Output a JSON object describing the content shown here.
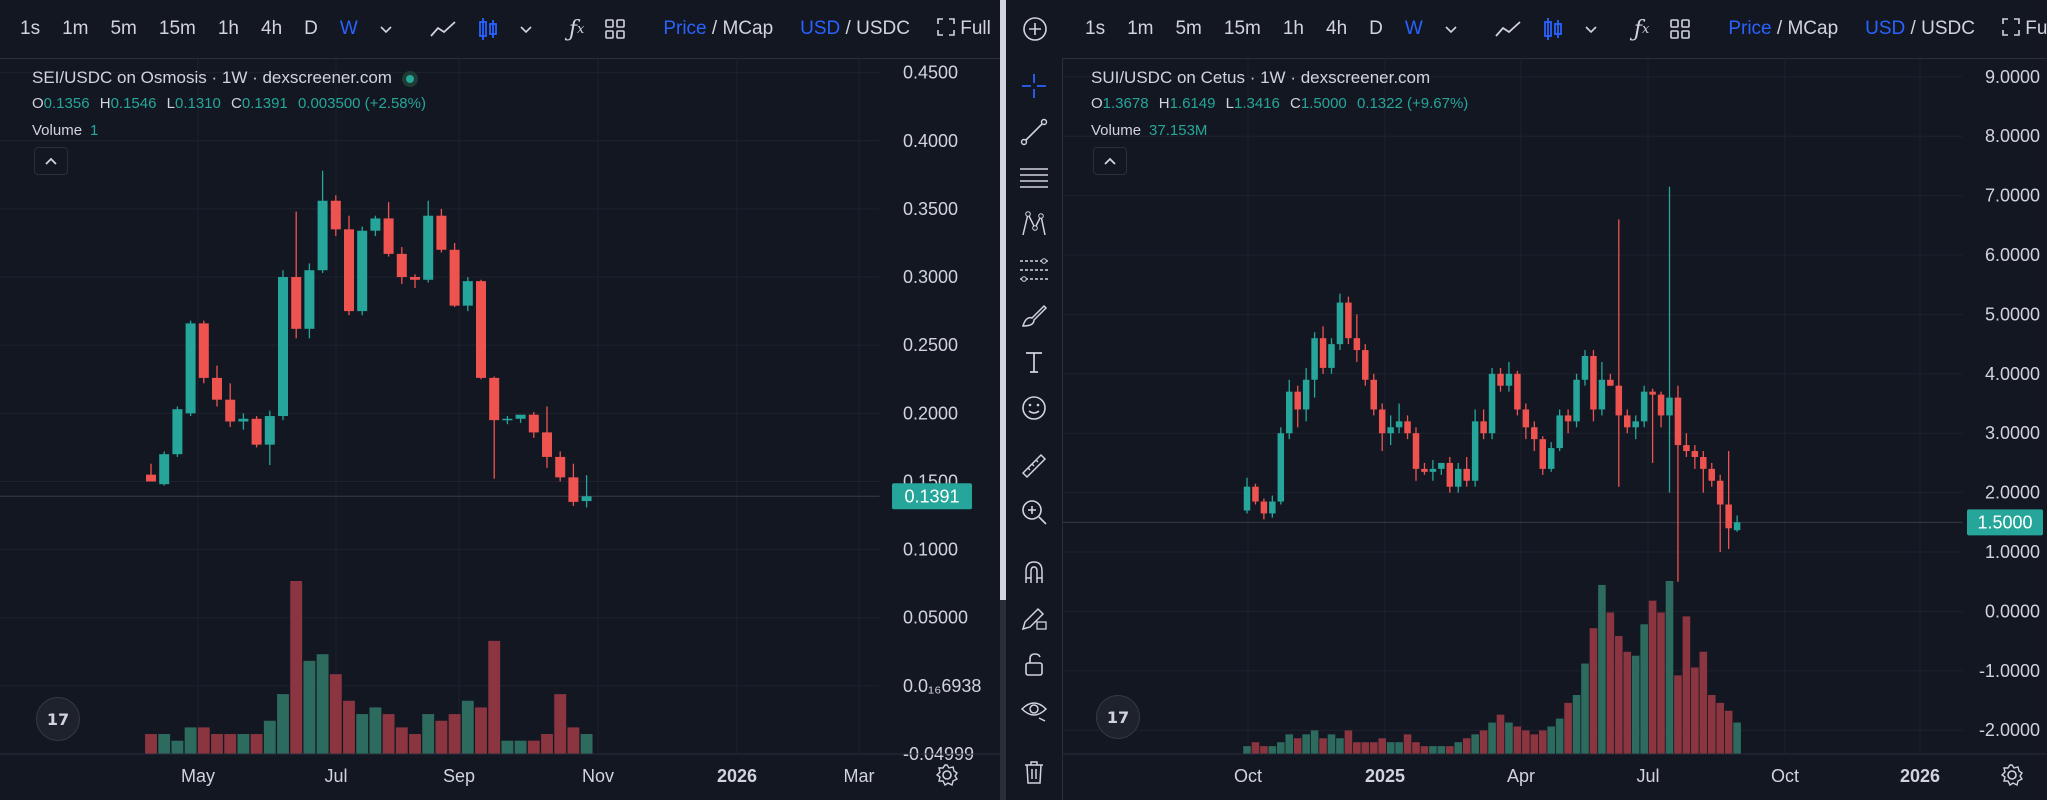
{
  "toolbar": {
    "intervals": [
      "1s",
      "1m",
      "5m",
      "15m",
      "1h",
      "4h",
      "D",
      "W"
    ],
    "active_interval": "W",
    "price_label": "Price",
    "mcap_label": "MCap",
    "usd_label": "USD",
    "usdc_label": "USDC",
    "full_label": "Full",
    "slash": "/"
  },
  "left": {
    "title": "SEI/USDC on Osmosis · 1W · dexscreener.com",
    "ohlc": {
      "o_label": "O",
      "o": "0.1356",
      "h_label": "H",
      "h": "0.1546",
      "l_label": "L",
      "l": "0.1310",
      "c_label": "C",
      "c": "0.1391",
      "change": "0.003500 (+2.58%)"
    },
    "volume_label": "Volume",
    "volume_value": "1",
    "tv_logo": "17"
  },
  "right": {
    "title": "SUI/USDC on Cetus · 1W · dexscreener.com",
    "ohlc": {
      "o_label": "O",
      "o": "1.3678",
      "h_label": "H",
      "h": "1.6149",
      "l_label": "L",
      "l": "1.3416",
      "c_label": "C",
      "c": "1.5000",
      "change": "0.1322 (+9.67%)"
    },
    "volume_label": "Volume",
    "volume_value": "37.153M",
    "tv_logo": "17"
  },
  "colors": {
    "up": "#26a69a",
    "down": "#ef5350",
    "up_vol": "#2e6b5f",
    "down_vol": "#8a3540",
    "grid": "#1e222d",
    "axis_text": "#d1d4dc",
    "bg": "#131722"
  },
  "chart_data": [
    {
      "type": "candlestick",
      "title": "SEI/USDC on Osmosis · 1W · dexscreener.com",
      "ylim": [
        -0.05,
        0.46
      ],
      "y_ticks": [
        "0.4500",
        "0.4000",
        "0.3500",
        "0.3000",
        "0.2500",
        "0.2000",
        "0.1500",
        "0.1000",
        "0.05000",
        "0.0₁₆6938",
        "-0.04999"
      ],
      "y_tick_values": [
        0.45,
        0.4,
        0.35,
        0.3,
        0.25,
        0.2,
        0.15,
        0.1,
        0.05,
        0.0,
        -0.05
      ],
      "x_ticks": [
        "May",
        "Jul",
        "Sep",
        "Nov",
        "2026",
        "Mar"
      ],
      "x_tick_bold": [
        false,
        false,
        false,
        false,
        true,
        false
      ],
      "last_price": "0.1391",
      "last_value": 0.1391,
      "candles": [
        {
          "o": 0.155,
          "h": 0.163,
          "l": 0.15,
          "c": 0.15
        },
        {
          "o": 0.148,
          "h": 0.172,
          "l": 0.147,
          "c": 0.17
        },
        {
          "o": 0.17,
          "h": 0.205,
          "l": 0.168,
          "c": 0.203
        },
        {
          "o": 0.2,
          "h": 0.268,
          "l": 0.198,
          "c": 0.266
        },
        {
          "o": 0.266,
          "h": 0.268,
          "l": 0.222,
          "c": 0.226
        },
        {
          "o": 0.226,
          "h": 0.235,
          "l": 0.205,
          "c": 0.21
        },
        {
          "o": 0.21,
          "h": 0.222,
          "l": 0.19,
          "c": 0.194
        },
        {
          "o": 0.194,
          "h": 0.2,
          "l": 0.188,
          "c": 0.196
        },
        {
          "o": 0.196,
          "h": 0.198,
          "l": 0.175,
          "c": 0.177
        },
        {
          "o": 0.177,
          "h": 0.202,
          "l": 0.162,
          "c": 0.198
        },
        {
          "o": 0.198,
          "h": 0.305,
          "l": 0.195,
          "c": 0.3
        },
        {
          "o": 0.3,
          "h": 0.348,
          "l": 0.255,
          "c": 0.262
        },
        {
          "o": 0.262,
          "h": 0.31,
          "l": 0.255,
          "c": 0.305
        },
        {
          "o": 0.305,
          "h": 0.378,
          "l": 0.303,
          "c": 0.356
        },
        {
          "o": 0.356,
          "h": 0.36,
          "l": 0.33,
          "c": 0.335
        },
        {
          "o": 0.335,
          "h": 0.345,
          "l": 0.272,
          "c": 0.275
        },
        {
          "o": 0.275,
          "h": 0.337,
          "l": 0.272,
          "c": 0.334
        },
        {
          "o": 0.334,
          "h": 0.345,
          "l": 0.33,
          "c": 0.343
        },
        {
          "o": 0.343,
          "h": 0.355,
          "l": 0.315,
          "c": 0.317
        },
        {
          "o": 0.317,
          "h": 0.322,
          "l": 0.295,
          "c": 0.3
        },
        {
          "o": 0.3,
          "h": 0.302,
          "l": 0.292,
          "c": 0.298
        },
        {
          "o": 0.298,
          "h": 0.356,
          "l": 0.296,
          "c": 0.345
        },
        {
          "o": 0.345,
          "h": 0.35,
          "l": 0.318,
          "c": 0.32
        },
        {
          "o": 0.32,
          "h": 0.325,
          "l": 0.278,
          "c": 0.279
        },
        {
          "o": 0.279,
          "h": 0.3,
          "l": 0.275,
          "c": 0.297
        },
        {
          "o": 0.297,
          "h": 0.298,
          "l": 0.225,
          "c": 0.226
        },
        {
          "o": 0.226,
          "h": 0.227,
          "l": 0.152,
          "c": 0.195
        },
        {
          "o": 0.195,
          "h": 0.198,
          "l": 0.192,
          "c": 0.196
        },
        {
          "o": 0.196,
          "h": 0.198,
          "l": 0.193,
          "c": 0.199
        },
        {
          "o": 0.199,
          "h": 0.201,
          "l": 0.182,
          "c": 0.186
        },
        {
          "o": 0.186,
          "h": 0.205,
          "l": 0.16,
          "c": 0.168
        },
        {
          "o": 0.168,
          "h": 0.172,
          "l": 0.15,
          "c": 0.153
        },
        {
          "o": 0.153,
          "h": 0.163,
          "l": 0.132,
          "c": 0.135
        },
        {
          "o": 0.1356,
          "h": 0.1546,
          "l": 0.131,
          "c": 0.1391
        }
      ],
      "volume": [
        3,
        3,
        2,
        4,
        4,
        3,
        3,
        3,
        3,
        5,
        9,
        26,
        14,
        15,
        12,
        8,
        6,
        7,
        6,
        4,
        3,
        6,
        5,
        6,
        8,
        7,
        17,
        2,
        2,
        2,
        3,
        9,
        4,
        3
      ],
      "volume_scale_max": 26
    },
    {
      "type": "candlestick",
      "title": "SUI/USDC on Cetus · 1W · dexscreener.com",
      "ylim": [
        -2.4,
        9.3
      ],
      "y_ticks": [
        "9.0000",
        "8.0000",
        "7.0000",
        "6.0000",
        "5.0000",
        "4.0000",
        "3.0000",
        "2.0000",
        "1.0000",
        "0.0000",
        "-1.0000",
        "-2.0000"
      ],
      "y_tick_values": [
        9,
        8,
        7,
        6,
        5,
        4,
        3,
        2,
        1,
        0,
        -1,
        -2
      ],
      "x_ticks": [
        "Oct",
        "2025",
        "Apr",
        "Jul",
        "Oct",
        "2026"
      ],
      "x_tick_bold": [
        false,
        true,
        false,
        false,
        false,
        true
      ],
      "last_price": "1.5000",
      "last_value": 1.5,
      "candles": [
        {
          "o": 1.7,
          "h": 2.25,
          "l": 1.65,
          "c": 2.1
        },
        {
          "o": 2.1,
          "h": 2.15,
          "l": 1.8,
          "c": 1.85
        },
        {
          "o": 1.85,
          "h": 1.9,
          "l": 1.55,
          "c": 1.65
        },
        {
          "o": 1.65,
          "h": 1.95,
          "l": 1.58,
          "c": 1.85
        },
        {
          "o": 1.85,
          "h": 3.1,
          "l": 1.8,
          "c": 3.0
        },
        {
          "o": 3.0,
          "h": 3.9,
          "l": 2.9,
          "c": 3.7
        },
        {
          "o": 3.7,
          "h": 3.8,
          "l": 3.1,
          "c": 3.4
        },
        {
          "o": 3.4,
          "h": 4.1,
          "l": 3.2,
          "c": 3.9
        },
        {
          "o": 3.9,
          "h": 4.7,
          "l": 3.6,
          "c": 4.6
        },
        {
          "o": 4.6,
          "h": 4.8,
          "l": 4.0,
          "c": 4.1
        },
        {
          "o": 4.1,
          "h": 4.6,
          "l": 4.0,
          "c": 4.5
        },
        {
          "o": 4.5,
          "h": 5.35,
          "l": 4.4,
          "c": 5.2
        },
        {
          "o": 5.2,
          "h": 5.3,
          "l": 4.5,
          "c": 4.6
        },
        {
          "o": 4.6,
          "h": 5.0,
          "l": 4.2,
          "c": 4.4
        },
        {
          "o": 4.4,
          "h": 4.5,
          "l": 3.8,
          "c": 3.9
        },
        {
          "o": 3.9,
          "h": 4.0,
          "l": 3.3,
          "c": 3.4
        },
        {
          "o": 3.4,
          "h": 3.5,
          "l": 2.7,
          "c": 3.0
        },
        {
          "o": 3.0,
          "h": 3.3,
          "l": 2.8,
          "c": 3.1
        },
        {
          "o": 3.1,
          "h": 3.5,
          "l": 3.0,
          "c": 3.2
        },
        {
          "o": 3.2,
          "h": 3.3,
          "l": 2.9,
          "c": 3.0
        },
        {
          "o": 3.0,
          "h": 3.1,
          "l": 2.2,
          "c": 2.4
        },
        {
          "o": 2.4,
          "h": 2.5,
          "l": 2.3,
          "c": 2.35
        },
        {
          "o": 2.35,
          "h": 2.55,
          "l": 2.2,
          "c": 2.4
        },
        {
          "o": 2.4,
          "h": 2.5,
          "l": 2.3,
          "c": 2.5
        },
        {
          "o": 2.5,
          "h": 2.6,
          "l": 2.0,
          "c": 2.1
        },
        {
          "o": 2.1,
          "h": 2.5,
          "l": 2.0,
          "c": 2.4
        },
        {
          "o": 2.4,
          "h": 2.6,
          "l": 2.1,
          "c": 2.2
        },
        {
          "o": 2.2,
          "h": 3.4,
          "l": 2.1,
          "c": 3.2
        },
        {
          "o": 3.2,
          "h": 3.4,
          "l": 2.9,
          "c": 3.0
        },
        {
          "o": 3.0,
          "h": 4.1,
          "l": 2.9,
          "c": 4.0
        },
        {
          "o": 4.0,
          "h": 4.1,
          "l": 3.7,
          "c": 3.8
        },
        {
          "o": 3.8,
          "h": 4.2,
          "l": 3.7,
          "c": 4.0
        },
        {
          "o": 4.0,
          "h": 4.05,
          "l": 3.3,
          "c": 3.4
        },
        {
          "o": 3.4,
          "h": 3.5,
          "l": 2.9,
          "c": 3.1
        },
        {
          "o": 3.1,
          "h": 3.2,
          "l": 2.7,
          "c": 2.9
        },
        {
          "o": 2.9,
          "h": 2.95,
          "l": 2.3,
          "c": 2.4
        },
        {
          "o": 2.4,
          "h": 2.85,
          "l": 2.35,
          "c": 2.75
        },
        {
          "o": 2.75,
          "h": 3.4,
          "l": 2.7,
          "c": 3.3
        },
        {
          "o": 3.3,
          "h": 3.4,
          "l": 3.0,
          "c": 3.2
        },
        {
          "o": 3.2,
          "h": 4.0,
          "l": 3.1,
          "c": 3.9
        },
        {
          "o": 3.9,
          "h": 4.4,
          "l": 3.8,
          "c": 4.3
        },
        {
          "o": 4.3,
          "h": 4.4,
          "l": 3.2,
          "c": 3.4
        },
        {
          "o": 3.4,
          "h": 4.2,
          "l": 3.3,
          "c": 3.9
        },
        {
          "o": 3.9,
          "h": 4.0,
          "l": 3.8,
          "c": 3.8
        },
        {
          "o": 3.8,
          "h": 6.6,
          "l": 2.1,
          "c": 3.3
        },
        {
          "o": 3.3,
          "h": 3.4,
          "l": 3.0,
          "c": 3.1
        },
        {
          "o": 3.1,
          "h": 3.3,
          "l": 2.9,
          "c": 3.2
        },
        {
          "o": 3.2,
          "h": 3.8,
          "l": 3.1,
          "c": 3.7
        },
        {
          "o": 3.7,
          "h": 3.75,
          "l": 2.5,
          "c": 3.65
        },
        {
          "o": 3.65,
          "h": 3.7,
          "l": 3.1,
          "c": 3.3
        },
        {
          "o": 3.3,
          "h": 7.15,
          "l": 2.0,
          "c": 3.6
        },
        {
          "o": 3.6,
          "h": 3.8,
          "l": 0.5,
          "c": 2.8
        },
        {
          "o": 2.8,
          "h": 3.0,
          "l": 2.6,
          "c": 2.7
        },
        {
          "o": 2.7,
          "h": 2.8,
          "l": 2.4,
          "c": 2.6
        },
        {
          "o": 2.6,
          "h": 2.7,
          "l": 2.0,
          "c": 2.4
        },
        {
          "o": 2.4,
          "h": 2.5,
          "l": 2.1,
          "c": 2.2
        },
        {
          "o": 2.2,
          "h": 2.3,
          "l": 1.0,
          "c": 1.8
        },
        {
          "o": 1.8,
          "h": 2.7,
          "l": 1.05,
          "c": 1.4
        },
        {
          "o": 1.3678,
          "h": 1.6149,
          "l": 1.3416,
          "c": 1.5
        }
      ],
      "volume": [
        0.2,
        0.3,
        0.2,
        0.2,
        0.3,
        0.5,
        0.4,
        0.5,
        0.6,
        0.4,
        0.5,
        0.4,
        0.6,
        0.3,
        0.3,
        0.3,
        0.4,
        0.3,
        0.3,
        0.5,
        0.3,
        0.2,
        0.2,
        0.2,
        0.2,
        0.3,
        0.4,
        0.5,
        0.6,
        0.8,
        1.0,
        0.8,
        0.7,
        0.6,
        0.5,
        0.6,
        0.7,
        0.9,
        1.3,
        1.5,
        2.3,
        3.2,
        4.3,
        3.6,
        3.0,
        2.6,
        2.5,
        3.3,
        3.9,
        3.6,
        4.4,
        2.0,
        3.5,
        2.2,
        2.6,
        1.5,
        1.3,
        1.1,
        0.8
      ],
      "volume_scale_max": 4.4
    }
  ]
}
